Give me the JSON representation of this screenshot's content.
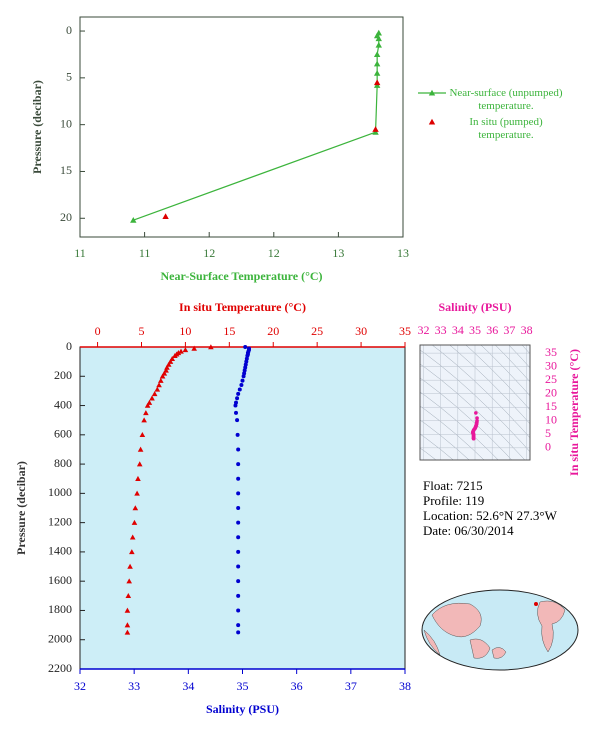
{
  "chart_data": [
    {
      "type": "scatter",
      "xlabel": "Near-Surface Temperature (°C)",
      "ylabel": "Pressure (decibar)",
      "xlim": [
        11,
        13
      ],
      "xticks": [
        11,
        {
          "value": 11.4,
          "label": "11"
        },
        {
          "value": 11.8,
          "label": "12"
        },
        {
          "value": 12.2,
          "label": "12"
        },
        {
          "value": 12.6,
          "label": "13"
        },
        13
      ],
      "ylim": [
        -1.5,
        22
      ],
      "yticks": [
        0,
        5,
        10,
        15,
        20
      ],
      "y_inverted": true,
      "series": [
        {
          "name": "Near-surface (unpumped) temperature.",
          "color": "#3cb43c",
          "line": true,
          "values": [
            12.85,
            12.84,
            12.85,
            12.85,
            12.84,
            12.84,
            12.84,
            12.84,
            12.83,
            11.33
          ],
          "pressure": [
            0.2,
            0.5,
            0.8,
            1.5,
            2.5,
            3.5,
            4.5,
            5.8,
            10.8,
            20.2
          ]
        },
        {
          "name": "In situ (pumped) temperature.",
          "color": "#dd0000",
          "line": false,
          "values": [
            12.84,
            12.83,
            11.53
          ],
          "pressure": [
            5.5,
            10.5,
            19.8
          ]
        }
      ]
    },
    {
      "type": "profile",
      "ylabel": "Pressure (decibar)",
      "ylim": [
        0,
        2200
      ],
      "y_inverted": true,
      "yticks": [
        0,
        200,
        400,
        600,
        800,
        1000,
        1200,
        1400,
        1600,
        1800,
        2000,
        2200
      ],
      "background": "#cdeef7",
      "pressure": [
        0,
        10,
        20,
        30,
        40,
        50,
        60,
        80,
        100,
        120,
        140,
        160,
        180,
        200,
        230,
        260,
        290,
        320,
        350,
        380,
        400,
        450,
        500,
        600,
        700,
        800,
        900,
        1000,
        1100,
        1200,
        1300,
        1400,
        1500,
        1600,
        1700,
        1800,
        1900,
        1950
      ],
      "series": [
        {
          "name": "In situ Temperature (°C)",
          "color": "#e00000",
          "axis": "top",
          "marker": "triangle",
          "xlim": [
            -2,
            35
          ],
          "xticks": [
            0,
            5,
            10,
            15,
            20,
            25,
            30,
            35
          ],
          "values": [
            12.9,
            11.0,
            10.0,
            9.5,
            9.2,
            9.0,
            8.8,
            8.5,
            8.3,
            8.1,
            7.9,
            7.8,
            7.6,
            7.4,
            7.2,
            7.0,
            6.8,
            6.5,
            6.2,
            5.9,
            5.7,
            5.5,
            5.3,
            5.1,
            4.9,
            4.8,
            4.6,
            4.5,
            4.3,
            4.2,
            4.0,
            3.9,
            3.7,
            3.6,
            3.5,
            3.4,
            3.4,
            3.4
          ]
        },
        {
          "name": "Salinity (PSU)",
          "color": "#0000d0",
          "axis": "bottom",
          "marker": "circle",
          "xlim": [
            32,
            38
          ],
          "xticks": [
            32,
            33,
            34,
            35,
            36,
            37,
            38
          ],
          "values": [
            35.05,
            35.12,
            35.12,
            35.11,
            35.1,
            35.1,
            35.09,
            35.08,
            35.07,
            35.06,
            35.05,
            35.04,
            35.03,
            35.02,
            35.0,
            34.98,
            34.95,
            34.92,
            34.9,
            34.88,
            34.87,
            34.88,
            34.9,
            34.91,
            34.92,
            34.92,
            34.92,
            34.92,
            34.92,
            34.92,
            34.92,
            34.92,
            34.92,
            34.92,
            34.92,
            34.92,
            34.92,
            34.92
          ]
        }
      ]
    },
    {
      "type": "ts-diagram",
      "xlabel": "Salinity (PSU)",
      "ylabel": "In situ Temperature (°C)",
      "color": "#e8179b",
      "xlim": [
        31.8,
        38.2
      ],
      "xticks": [
        32,
        33,
        34,
        35,
        36,
        37,
        38
      ],
      "ylim": [
        -4.5,
        38
      ],
      "yticks": [
        0,
        5,
        10,
        15,
        20,
        25,
        30,
        35
      ]
    }
  ],
  "float_info": {
    "float": "Float:  7215",
    "profile": "Profile:  119",
    "location": "Location:  52.6°N  27.3°W",
    "date": "Date:  06/30/2014"
  }
}
